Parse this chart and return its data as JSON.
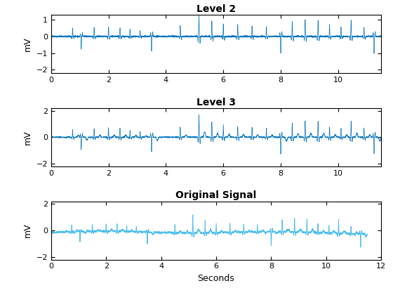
{
  "title1": "Level 2",
  "title2": "Level 3",
  "title3": "Original Signal",
  "ylabel": "mV",
  "xlabel": "Seconds",
  "xlim1": [
    0,
    11.5
  ],
  "xlim2": [
    0,
    11.5
  ],
  "xlim3": [
    0,
    12
  ],
  "ylim1": [
    -2.2,
    1.3
  ],
  "ylim2": [
    -2.2,
    2.2
  ],
  "ylim3": [
    -2.2,
    2.2
  ],
  "stem_color": "#0072BD",
  "line_color": "#4DBEEE",
  "baseline_color": "#0072BD",
  "fs": 360,
  "duration": 11.5,
  "figsize": [
    5.6,
    4.2
  ],
  "dpi": 100
}
